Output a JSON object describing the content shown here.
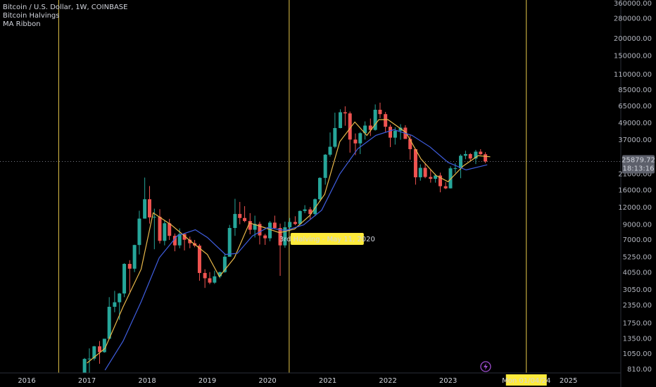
{
  "chart_data": {
    "type": "candlestick",
    "title": "Bitcoin / U.S. Dollar, 1W, COINBASE",
    "indicators": [
      "Bitcoin Halvings",
      "MA Ribbon"
    ],
    "log_scale": true,
    "grid": false,
    "up_color": "#26a69a",
    "down_color": "#ef5350",
    "x": [
      2016.87,
      2016.96,
      2017.04,
      2017.12,
      2017.21,
      2017.29,
      2017.37,
      2017.46,
      2017.54,
      2017.62,
      2017.71,
      2017.79,
      2017.87,
      2017.96,
      2018.04,
      2018.12,
      2018.21,
      2018.29,
      2018.37,
      2018.46,
      2018.54,
      2018.62,
      2018.71,
      2018.79,
      2018.87,
      2018.96,
      2019.04,
      2019.12,
      2019.21,
      2019.29,
      2019.37,
      2019.46,
      2019.54,
      2019.62,
      2019.71,
      2019.79,
      2019.87,
      2019.96,
      2020.04,
      2020.12,
      2020.21,
      2020.29,
      2020.37,
      2020.46,
      2020.54,
      2020.62,
      2020.71,
      2020.79,
      2020.87,
      2020.96,
      2021.04,
      2021.12,
      2021.21,
      2021.29,
      2021.37,
      2021.46,
      2021.54,
      2021.62,
      2021.71,
      2021.79,
      2021.87,
      2021.96,
      2022.04,
      2022.12,
      2022.21,
      2022.29,
      2022.37,
      2022.46,
      2022.54,
      2022.62,
      2022.71,
      2022.79,
      2022.87,
      2022.96,
      2023.04,
      2023.12,
      2023.21,
      2023.29,
      2023.37,
      2023.46,
      2023.54,
      2023.62
    ],
    "open": [
      700,
      745,
      965,
      970,
      1190,
      1080,
      1350,
      2300,
      2480,
      2870,
      4700,
      4340,
      6440,
      10000,
      13800,
      10200,
      10300,
      6900,
      9250,
      7500,
      6400,
      7730,
      7030,
      6630,
      6370,
      4040,
      3700,
      3440,
      3820,
      4100,
      5300,
      8550,
      10800,
      10100,
      9600,
      8300,
      9150,
      7550,
      7200,
      9350,
      8550,
      6400,
      8650,
      9450,
      9140,
      11350,
      11650,
      10780,
      13800,
      19700,
      29000,
      33100,
      45200,
      58800,
      57700,
      37300,
      35000,
      41500,
      47100,
      43800,
      61300,
      57000,
      46200,
      38500,
      43200,
      45500,
      37700,
      31800,
      19900,
      23300,
      20000,
      19400,
      20500,
      17150,
      16550,
      23100,
      23150,
      28500,
      29300,
      27200,
      30500,
      29200
    ],
    "high": [
      755,
      980,
      1150,
      1200,
      1300,
      1350,
      2700,
      3000,
      2900,
      4750,
      5000,
      6470,
      11400,
      19800,
      17200,
      11800,
      11700,
      9800,
      9950,
      7800,
      8500,
      7760,
      7400,
      7000,
      6550,
      4300,
      4100,
      4200,
      4120,
      5600,
      9000,
      13900,
      13200,
      12300,
      10950,
      10500,
      9500,
      7750,
      9600,
      10500,
      9200,
      9500,
      10100,
      10400,
      11450,
      12500,
      12100,
      14000,
      19900,
      29300,
      42000,
      58400,
      61800,
      64900,
      59500,
      41300,
      42300,
      50500,
      52900,
      67000,
      69000,
      59100,
      47900,
      45800,
      48200,
      47400,
      40000,
      31900,
      24700,
      25200,
      22800,
      21100,
      21500,
      18400,
      23900,
      25200,
      29200,
      31000,
      29800,
      31400,
      31800,
      30200
    ],
    "low": [
      680,
      740,
      750,
      940,
      890,
      1070,
      1350,
      2100,
      1850,
      2700,
      2950,
      4100,
      5500,
      10000,
      9200,
      6000,
      6600,
      6400,
      7000,
      5800,
      6100,
      5880,
      6100,
      6200,
      3550,
      3150,
      3350,
      3370,
      3700,
      4050,
      5300,
      7500,
      9100,
      9400,
      7700,
      7300,
      6500,
      6450,
      6850,
      8450,
      3850,
      6150,
      8100,
      8950,
      8950,
      10950,
      9900,
      10400,
      13200,
      17600,
      28100,
      32300,
      45000,
      47000,
      30000,
      28800,
      29300,
      37300,
      39600,
      43300,
      53300,
      42000,
      32900,
      34300,
      37200,
      37700,
      26700,
      17600,
      18800,
      19600,
      18200,
      18200,
      15500,
      16300,
      16500,
      21400,
      19600,
      26900,
      25800,
      24800,
      28900,
      25200
    ],
    "close": [
      745,
      965,
      970,
      1190,
      1080,
      1350,
      2300,
      2480,
      2870,
      4700,
      4340,
      6440,
      10000,
      13800,
      10200,
      10300,
      6900,
      9250,
      7500,
      6400,
      7730,
      7030,
      6630,
      6370,
      4040,
      3700,
      3440,
      3820,
      4100,
      5300,
      8550,
      10800,
      10100,
      9600,
      8300,
      9150,
      7550,
      7200,
      9350,
      8550,
      6400,
      8650,
      9450,
      9140,
      11350,
      11650,
      10780,
      13800,
      19700,
      29000,
      33100,
      45200,
      58800,
      57700,
      37300,
      35000,
      41500,
      47100,
      43800,
      61300,
      57000,
      46200,
      38500,
      43200,
      45500,
      37700,
      31800,
      19900,
      23300,
      20000,
      19400,
      20500,
      17150,
      16550,
      23100,
      23150,
      28500,
      29300,
      27200,
      30500,
      29200,
      25879.72
    ],
    "ma": [
      {
        "color": "#e8b84a",
        "x": [
          2017.0,
          2017.3,
          2017.6,
          2017.9,
          2018.1,
          2018.4,
          2018.7,
          2019.0,
          2019.2,
          2019.45,
          2019.7,
          2019.95,
          2020.2,
          2020.45,
          2020.7,
          2020.95,
          2021.2,
          2021.45,
          2021.65,
          2021.85,
          2022.0,
          2022.3,
          2022.55,
          2022.8,
          2023.0,
          2023.25,
          2023.5,
          2023.7
        ],
        "values": [
          900,
          1150,
          2300,
          4300,
          11000,
          9000,
          7000,
          5500,
          3800,
          5200,
          9300,
          8600,
          7900,
          8400,
          10500,
          15000,
          36000,
          50000,
          40000,
          52000,
          52000,
          42000,
          27000,
          20500,
          18500,
          24000,
          28500,
          28000
        ]
      },
      {
        "color": "#3f5ee0",
        "x": [
          2017.3,
          2017.6,
          2017.9,
          2018.2,
          2018.5,
          2018.8,
          2019.0,
          2019.3,
          2019.5,
          2019.75,
          2020.0,
          2020.3,
          2020.6,
          2020.9,
          2021.2,
          2021.5,
          2021.8,
          2022.1,
          2022.4,
          2022.7,
          2023.0,
          2023.3,
          2023.65
        ],
        "values": [
          800,
          1300,
          2500,
          5200,
          7500,
          8300,
          7300,
          5500,
          5600,
          7500,
          8600,
          8200,
          9000,
          11500,
          21000,
          32000,
          40000,
          44000,
          40000,
          33000,
          25500,
          22500,
          24500
        ]
      }
    ],
    "halvings": {
      "color": "#e6c84a",
      "x": [
        2016.53,
        2020.36,
        2024.3
      ]
    },
    "halving_label": "3rd Halving - May 11, 2020",
    "crosshair_label": "Mon 01/04/24",
    "last_price": {
      "value": 25879.72,
      "label": "25879.72"
    },
    "countdown": "18:13:16",
    "xlim": [
      2015.555,
      2025.87
    ],
    "xticks": [
      2016,
      2017,
      2018,
      2019,
      2020,
      2021,
      2022,
      2023,
      2025
    ],
    "ylim": [
      764,
      381700
    ],
    "yticks": [
      {
        "value": 360000,
        "label": "360000.00"
      },
      {
        "value": 280000,
        "label": "280000.00"
      },
      {
        "value": 200000,
        "label": "200000.00"
      },
      {
        "value": 150000,
        "label": "150000.00"
      },
      {
        "value": 110000,
        "label": "110000.00"
      },
      {
        "value": 85000,
        "label": "85000.00"
      },
      {
        "value": 65000,
        "label": "65000.00"
      },
      {
        "value": 49000,
        "label": "49000.00"
      },
      {
        "value": 37000,
        "label": "37000.00"
      },
      {
        "value": 21000,
        "label": "21000.00"
      },
      {
        "value": 16000,
        "label": "16000.00"
      },
      {
        "value": 12000,
        "label": "12000.00"
      },
      {
        "value": 9000,
        "label": "9000.00"
      },
      {
        "value": 7000,
        "label": "7000.00"
      },
      {
        "value": 5250,
        "label": "5250.00"
      },
      {
        "value": 4050,
        "label": "4050.00"
      },
      {
        "value": 3050,
        "label": "3050.00"
      },
      {
        "value": 2350,
        "label": "2350.00"
      },
      {
        "value": 1750,
        "label": "1750.00"
      },
      {
        "value": 1350,
        "label": "1350.00"
      },
      {
        "value": 1050,
        "label": "1050.00"
      },
      {
        "value": 810,
        "label": "810.00"
      }
    ]
  }
}
